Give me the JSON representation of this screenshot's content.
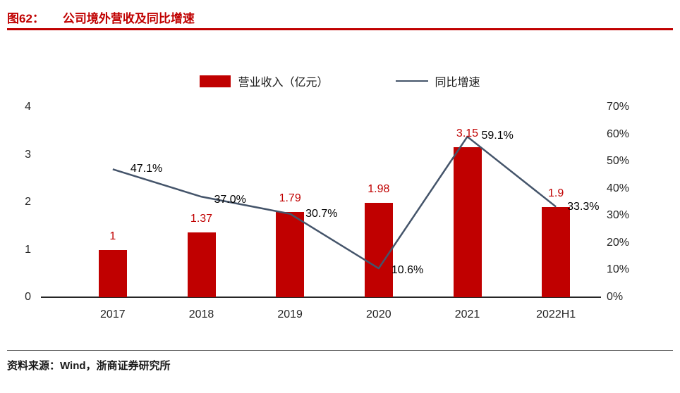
{
  "header": {
    "figure_label": "图62：",
    "title": "公司境外营收及同比增速"
  },
  "legend": [
    {
      "label": "营业收入（亿元）",
      "type": "bar",
      "color": "#c00000"
    },
    {
      "label": "同比增速",
      "type": "line",
      "color": "#44546a"
    }
  ],
  "chart_data": {
    "type": "bar",
    "title": "公司境外营收及同比增速",
    "categories": [
      "2017",
      "2018",
      "2019",
      "2020",
      "2021",
      "2022H1"
    ],
    "series": [
      {
        "name": "营业收入（亿元）",
        "type": "bar",
        "axis": "left",
        "values": [
          1,
          1.37,
          1.79,
          1.98,
          3.15,
          1.9
        ],
        "labels": [
          "1",
          "1.37",
          "1.79",
          "1.98",
          "3.15",
          "1.9"
        ],
        "color": "#c00000"
      },
      {
        "name": "同比增速",
        "type": "line",
        "axis": "right",
        "values": [
          47.1,
          37.0,
          30.7,
          10.6,
          59.1,
          33.3
        ],
        "labels": [
          "47.1%",
          "37.0%",
          "30.7%",
          "10.6%",
          "59.1%",
          "33.3%"
        ],
        "color": "#44546a"
      }
    ],
    "left_axis": {
      "min": 0,
      "max": 4,
      "ticks": [
        "4",
        "3",
        "2",
        "1",
        "0"
      ]
    },
    "right_axis": {
      "min": 0,
      "max": 70,
      "ticks": [
        "70%",
        "60%",
        "50%",
        "40%",
        "30%",
        "20%",
        "10%",
        "0%"
      ]
    },
    "grid": false,
    "legend_position": "top"
  },
  "footer": {
    "source": "资料来源：Wind，浙商证券研究所"
  }
}
